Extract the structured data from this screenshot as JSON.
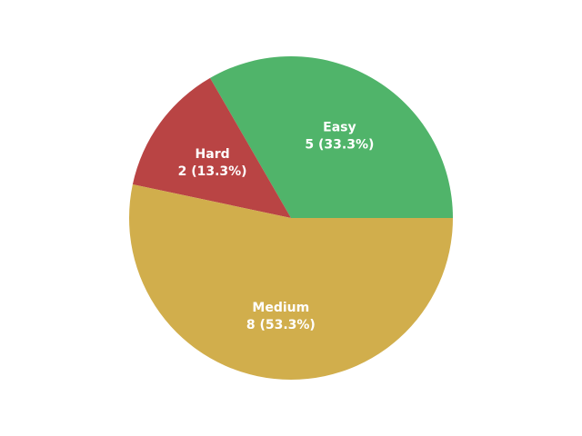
{
  "chart_data": {
    "type": "pie",
    "slices": [
      {
        "label": "Easy",
        "value": 5,
        "percent_text": "5 (33.3%)",
        "color": "#50b46a"
      },
      {
        "label": "Hard",
        "value": 2,
        "percent_text": "2 (13.3%)",
        "color": "#b94444"
      },
      {
        "label": "Medium",
        "value": 8,
        "percent_text": "8 (53.3%)",
        "color": "#d1ae4c"
      }
    ],
    "start_angle_deg": 0,
    "direction": "counterclockwise",
    "legend": "none"
  }
}
